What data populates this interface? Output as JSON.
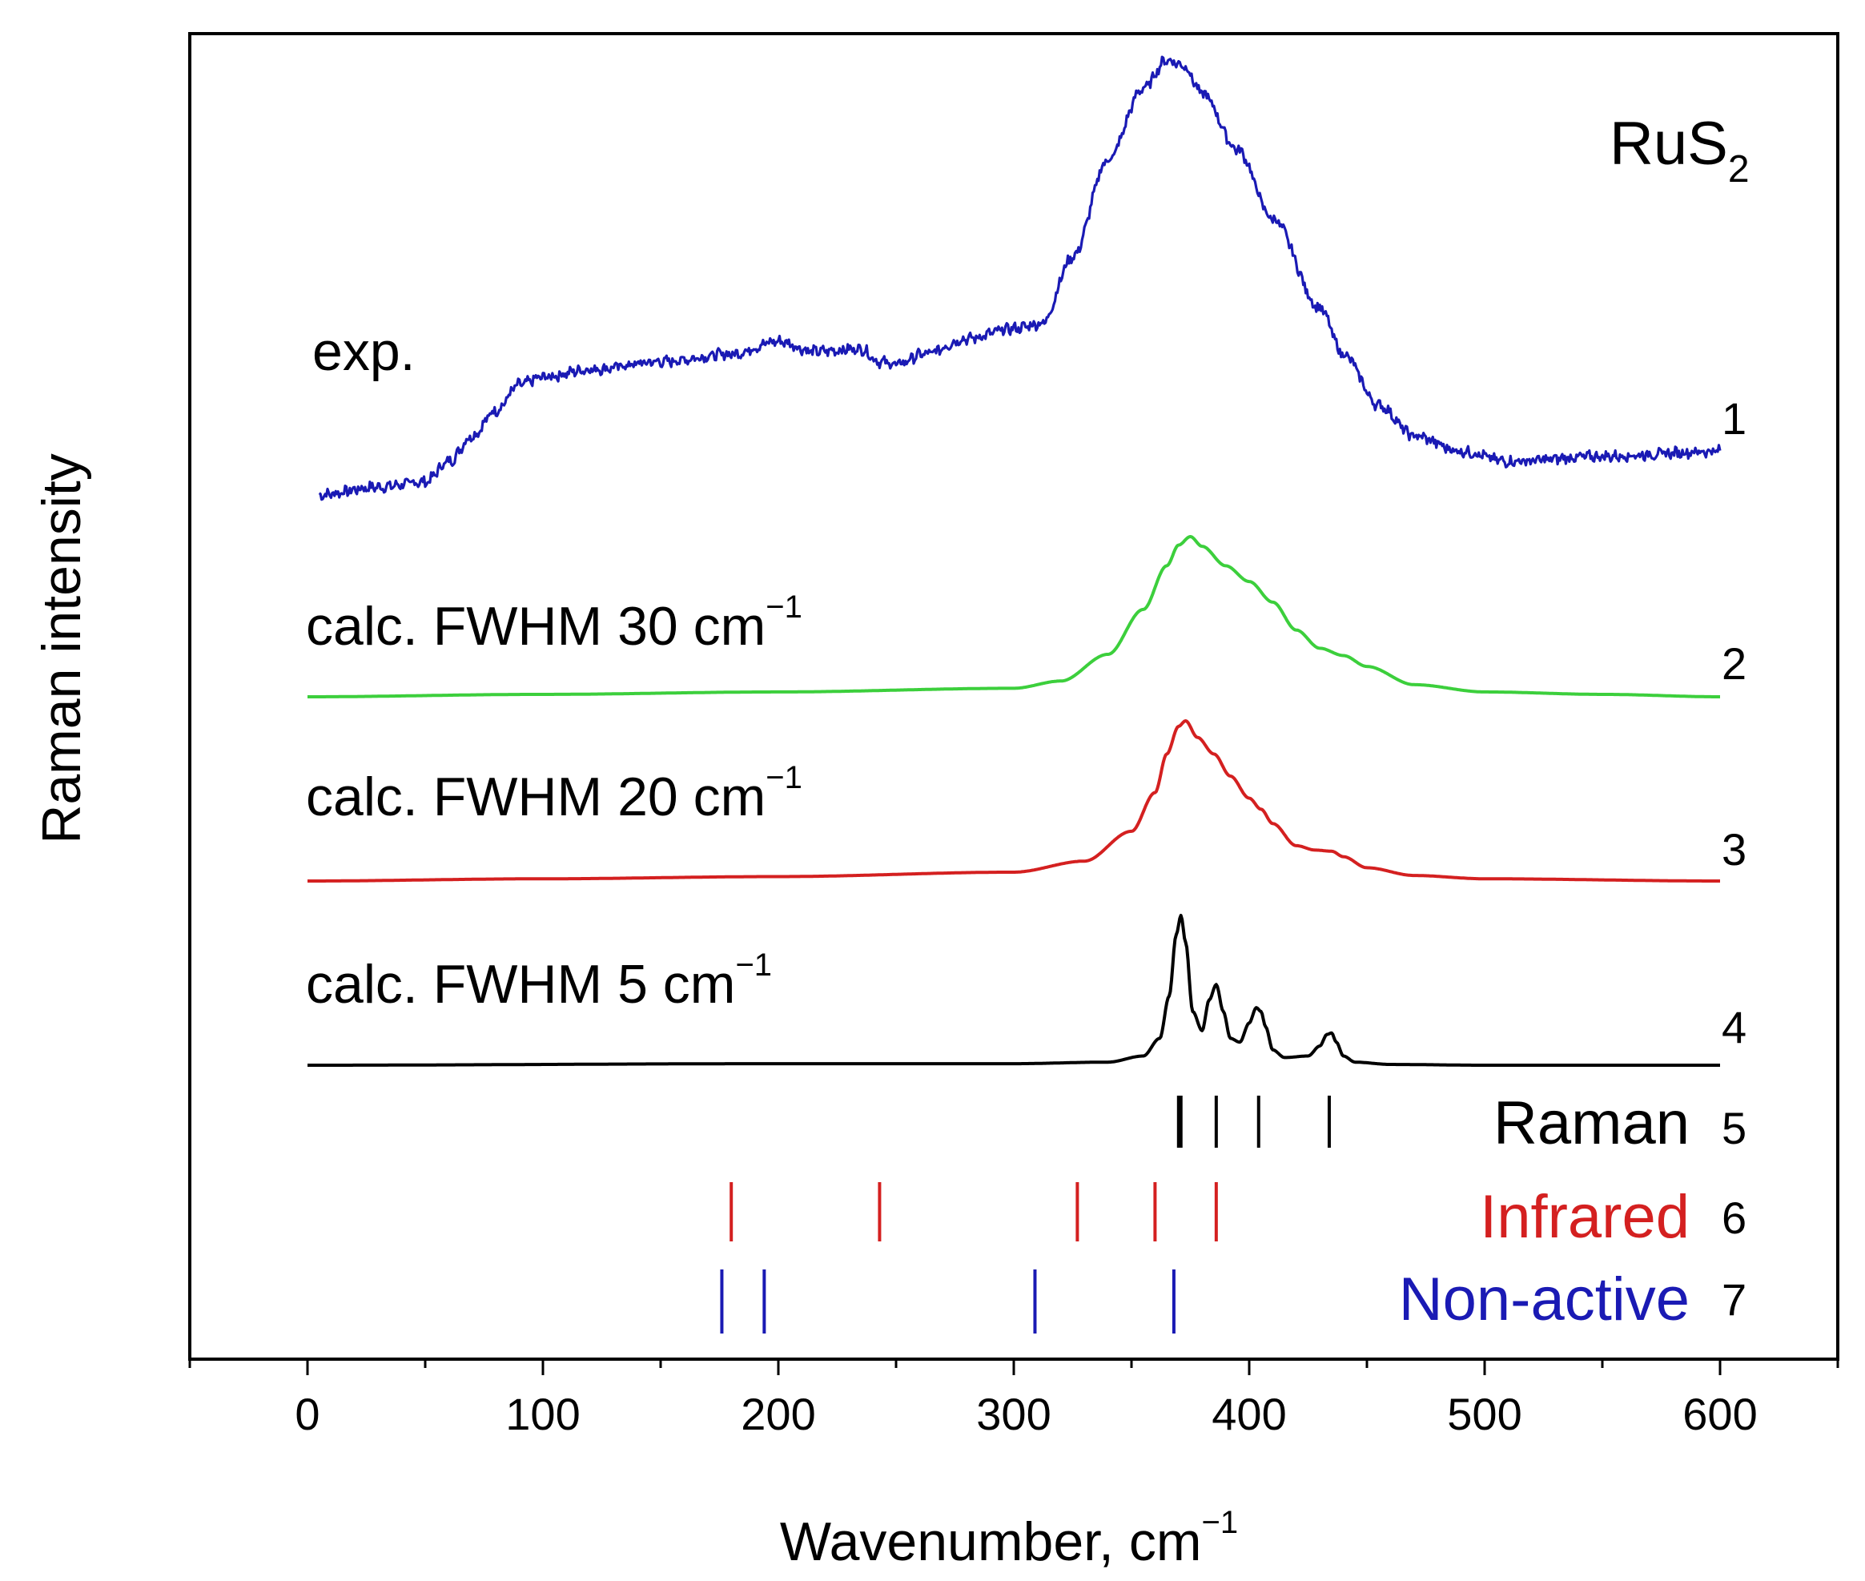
{
  "chart_data": {
    "type": "line",
    "title": "",
    "sample": {
      "base": "RuS",
      "subscript": "2"
    },
    "xlabel": {
      "text": "Wavenumber, cm",
      "superscript": "−1"
    },
    "ylabel": "Raman intensity",
    "xlim": [
      -50,
      650
    ],
    "xticks": [
      0,
      100,
      200,
      300,
      400,
      500,
      600
    ],
    "xtick_labels": [
      "0",
      "100",
      "200",
      "300",
      "400",
      "500",
      "600"
    ],
    "x_minor_step": 50,
    "y_ticks": "none",
    "grid": false,
    "series": [
      {
        "index": "1",
        "name": "exp.",
        "label": {
          "text": "exp.",
          "superscript": ""
        },
        "color": "#1a1ab4",
        "noise": true,
        "x": [
          5,
          30,
          50,
          60,
          70,
          80,
          90,
          100,
          120,
          150,
          180,
          200,
          215,
          235,
          243,
          250,
          262,
          280,
          300,
          312,
          325,
          340,
          355,
          365,
          372,
          380,
          395,
          410,
          430,
          440,
          455,
          470,
          490,
          510,
          550,
          600
        ],
        "y": [
          0.07,
          0.1,
          0.12,
          0.2,
          0.3,
          0.4,
          0.5,
          0.53,
          0.56,
          0.59,
          0.62,
          0.67,
          0.63,
          0.64,
          0.59,
          0.58,
          0.62,
          0.68,
          0.72,
          0.74,
          1.0,
          1.38,
          1.66,
          1.77,
          1.75,
          1.64,
          1.42,
          1.15,
          0.8,
          0.62,
          0.42,
          0.3,
          0.24,
          0.2,
          0.22,
          0.24
        ]
      },
      {
        "index": "2",
        "name": "calc. FWHM 30 cm−1",
        "label": {
          "text": "calc. FWHM 30 cm",
          "superscript": "−1"
        },
        "color": "#3ccf3c",
        "noise": false,
        "x": [
          0,
          100,
          200,
          300,
          320,
          340,
          355,
          365,
          370,
          375,
          380,
          390,
          400,
          410,
          420,
          430,
          440,
          450,
          470,
          500,
          550,
          600
        ],
        "y": [
          0.0,
          0.02,
          0.04,
          0.07,
          0.13,
          0.35,
          0.72,
          1.08,
          1.25,
          1.32,
          1.24,
          1.08,
          0.95,
          0.78,
          0.55,
          0.4,
          0.34,
          0.25,
          0.1,
          0.04,
          0.02,
          0.0
        ]
      },
      {
        "index": "3",
        "name": "calc. FWHM 20 cm−1",
        "label": {
          "text": "calc. FWHM 20 cm",
          "superscript": "−1"
        },
        "color": "#d42020",
        "noise": false,
        "x": [
          0,
          100,
          200,
          300,
          330,
          350,
          360,
          365,
          370,
          373,
          378,
          385,
          392,
          400,
          405,
          410,
          420,
          428,
          435,
          440,
          450,
          470,
          500,
          600
        ],
        "y": [
          0.0,
          0.02,
          0.04,
          0.08,
          0.18,
          0.45,
          0.8,
          1.15,
          1.4,
          1.45,
          1.3,
          1.15,
          0.95,
          0.75,
          0.65,
          0.52,
          0.32,
          0.28,
          0.27,
          0.22,
          0.12,
          0.05,
          0.02,
          0.0
        ]
      },
      {
        "index": "4",
        "name": "calc. FWHM 5 cm−1",
        "label": {
          "text": "calc. FWHM 5 cm",
          "superscript": "−1"
        },
        "color": "#000000",
        "noise": false,
        "x": [
          0,
          200,
          300,
          340,
          355,
          362,
          366,
          369,
          371,
          373,
          376,
          380,
          383,
          386,
          389,
          392,
          396,
          400,
          403,
          405,
          407,
          410,
          415,
          425,
          430,
          433,
          435,
          437,
          440,
          445,
          460,
          500,
          600
        ],
        "y": [
          0.0,
          0.02,
          0.02,
          0.04,
          0.12,
          0.35,
          0.9,
          1.7,
          1.95,
          1.6,
          0.7,
          0.45,
          0.85,
          1.05,
          0.7,
          0.35,
          0.3,
          0.55,
          0.75,
          0.7,
          0.5,
          0.2,
          0.1,
          0.12,
          0.25,
          0.4,
          0.42,
          0.3,
          0.12,
          0.04,
          0.01,
          0.0,
          0.0
        ]
      }
    ],
    "mode_lines": [
      {
        "index": "5",
        "name": "Raman",
        "color": "#000000",
        "positions": [
          370,
          371,
          386,
          404,
          434
        ]
      },
      {
        "index": "6",
        "name": "Infrared",
        "color": "#d42020",
        "positions": [
          180,
          243,
          327,
          360,
          386
        ]
      },
      {
        "index": "7",
        "name": "Non-active",
        "color": "#1a1ab4",
        "positions": [
          176,
          194,
          309,
          368
        ]
      }
    ]
  }
}
